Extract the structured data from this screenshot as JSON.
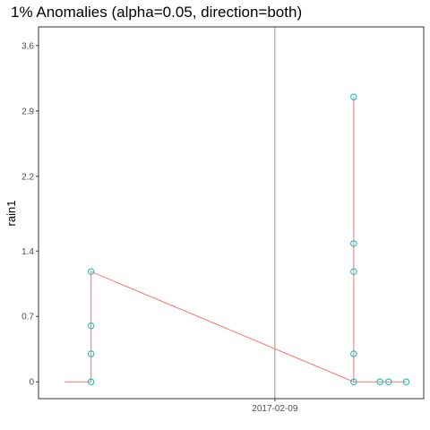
{
  "chart_data": {
    "type": "scatter",
    "title": "1% Anomalies (alpha=0.05, direction=both)",
    "xlabel": "",
    "ylabel": "rain1",
    "ylim": [
      -0.18,
      3.8
    ],
    "xlim": [
      -1.35,
      0.85
    ],
    "y_ticks": [
      0,
      0.7,
      1.4,
      2.2,
      2.9,
      3.6
    ],
    "y_tick_labels": [
      "0",
      "0.7",
      "1.4",
      "2.2",
      "2.9",
      "3.6"
    ],
    "x_ticks": [
      0
    ],
    "x_tick_labels": [
      "2017-02-09"
    ],
    "vline_at": 0,
    "grid": false,
    "line_color": "#F8766D",
    "point_color": "#00BFC4",
    "x_unit_note_hidden": true,
    "series": [
      {
        "x": [
          -1.2,
          -1.05,
          -1.05,
          -1.05,
          -1.05,
          -1.05,
          -1.05,
          0.45,
          0.45,
          0.45,
          0.45,
          0.45,
          0.45,
          0.45,
          0.45,
          0.45,
          0.45,
          0.45,
          0.45,
          0.45,
          0.45,
          0.45,
          0.45,
          0.45,
          0.45,
          0.45,
          0.6,
          0.6,
          0.65,
          0.75
        ],
        "y": [
          0,
          0,
          0.3,
          0,
          0.6,
          0,
          1.18,
          0,
          0.3,
          0,
          0.3,
          0,
          0.3,
          0,
          1.18,
          0,
          1.48,
          0,
          3.05,
          0,
          0.3,
          0,
          0.3,
          0,
          0.3,
          0,
          0,
          0,
          0,
          0
        ]
      }
    ],
    "points": [
      {
        "x": -1.05,
        "y": 0
      },
      {
        "x": -1.05,
        "y": 0.3
      },
      {
        "x": -1.05,
        "y": 0.6
      },
      {
        "x": -1.05,
        "y": 1.18
      },
      {
        "x": 0.45,
        "y": 0
      },
      {
        "x": 0.45,
        "y": 0.3
      },
      {
        "x": 0.45,
        "y": 1.18
      },
      {
        "x": 0.45,
        "y": 1.48
      },
      {
        "x": 0.45,
        "y": 3.05
      },
      {
        "x": 0.6,
        "y": 0
      },
      {
        "x": 0.65,
        "y": 0
      },
      {
        "x": 0.75,
        "y": 0
      }
    ]
  }
}
